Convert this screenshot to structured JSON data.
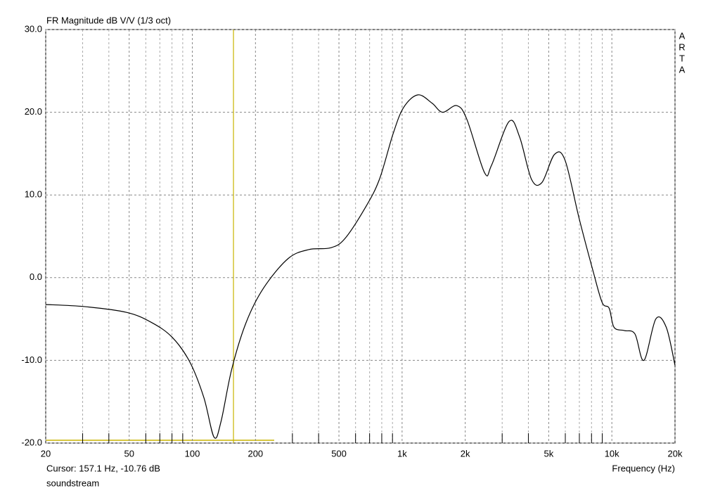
{
  "chart_data": {
    "type": "line",
    "title": "FR Magnitude dB V/V (1/3 oct)",
    "x_label": "Frequency (Hz)",
    "brand": [
      "A",
      "R",
      "T",
      "A"
    ],
    "cursor": {
      "label": "Cursor: 157.1 Hz, -10.76 dB",
      "x": 157.1,
      "y": -10.76,
      "color": "#c8b400"
    },
    "caption": "soundstream",
    "log_x": true,
    "grid": true,
    "xlim": [
      20,
      20000
    ],
    "ylim": [
      -20,
      30
    ],
    "xticks": [
      20,
      50,
      100,
      200,
      500,
      {
        "value": 1000,
        "label": "1k"
      },
      {
        "value": 2000,
        "label": "2k"
      },
      {
        "value": 5000,
        "label": "5k"
      },
      {
        "value": 10000,
        "label": "10k"
      },
      {
        "value": 20000,
        "label": "20k"
      }
    ],
    "xminor": [
      30,
      40,
      60,
      70,
      80,
      90,
      300,
      400,
      600,
      700,
      800,
      900,
      3000,
      4000,
      6000,
      7000,
      8000,
      9000
    ],
    "yticks": [
      {
        "value": 30,
        "label": "30.0"
      },
      {
        "value": 20,
        "label": "20.0"
      },
      {
        "value": 10,
        "label": "10.0"
      },
      {
        "value": 0,
        "label": "0.0"
      },
      {
        "value": -10,
        "label": "-10.0"
      },
      {
        "value": -20,
        "label": "-20.0"
      }
    ],
    "series": [
      {
        "color": "#000000",
        "x": [
          20,
          30.6,
          48.6,
          63.7,
          80.1,
          97.3,
          113.5,
          127,
          137,
          154,
          180,
          218,
          286,
          360,
          455,
          533,
          669,
          780,
          906,
          1018,
          1190,
          1389,
          1560,
          1823,
          2039,
          2471,
          2670,
          3240,
          3634,
          4138,
          4640,
          5327,
          5982,
          6976,
          8135,
          8990,
          9708,
          10243,
          11482,
          12881,
          14222,
          16202,
          18171,
          20000
        ],
        "values": [
          -3.25,
          -3.5,
          -4.2,
          -5.4,
          -7.2,
          -10.2,
          -14.5,
          -19.3,
          -17.4,
          -11.1,
          -5.5,
          -1.3,
          2.3,
          3.4,
          3.6,
          4.7,
          8.5,
          11.9,
          17.4,
          20.6,
          22.1,
          21.1,
          20.0,
          20.8,
          19.1,
          12.7,
          13.6,
          18.9,
          17.0,
          11.9,
          11.5,
          14.9,
          14.2,
          7.2,
          0.8,
          -3.0,
          -3.7,
          -6.0,
          -6.4,
          -6.8,
          -10.0,
          -5.0,
          -6.0,
          -10.6
        ]
      }
    ]
  }
}
